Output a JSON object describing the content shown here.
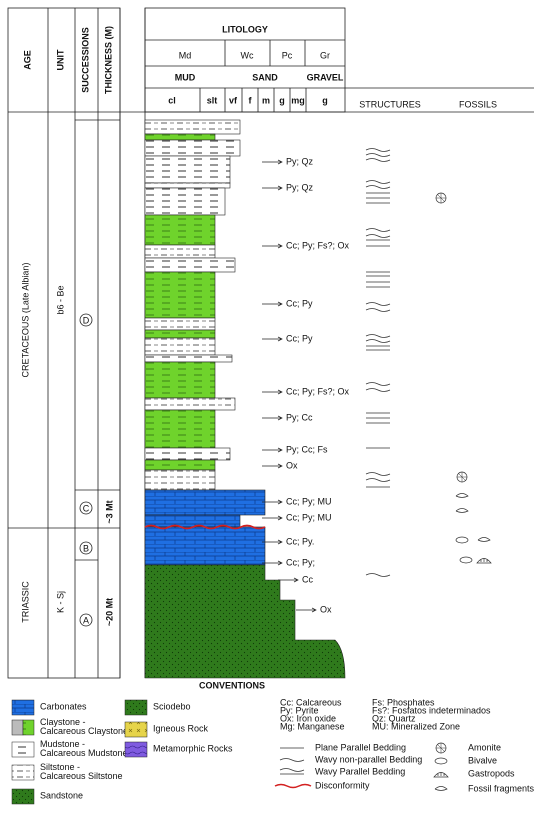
{
  "header": {
    "columns": [
      "AGE",
      "UNIT",
      "SUCCESSIONS",
      "THICKNESS (M)"
    ],
    "title": "LITOLOGY",
    "textures": [
      "Md",
      "Wc",
      "Pc",
      "Gr"
    ],
    "grain_groups": [
      "MUD",
      "SAND",
      "GRAVEL"
    ],
    "grain_sizes": [
      "cl",
      "slt",
      "vf",
      "f",
      "m",
      "g",
      "mg",
      "g"
    ],
    "structures": "STRUCTURES",
    "fossils": "FOSSILS"
  },
  "ages": [
    "CRETACEOUS (Late Albian)",
    "TRIASSIC"
  ],
  "units": [
    "b6 - Be",
    "K - Sj"
  ],
  "successions": [
    "D",
    "C",
    "B",
    "A"
  ],
  "thickness": [
    "~3 Mt",
    "~20 Mt"
  ],
  "annotations": [
    "Py; Qz",
    "Py; Qz",
    "Cc; Py; Fs?; Ox",
    "Cc; Py",
    "Cc; Py",
    "Cc; Py; Fs?; Ox",
    "Py; Cc",
    "Py; Cc; Fs",
    "Ox",
    "Cc; Py; MU",
    "Cc; Py; MU",
    "Cc; Py.",
    "Cc; Py;",
    "Cc",
    "Ox"
  ],
  "conventions": {
    "title": "CONVENTIONS",
    "lithology": [
      "Carbonates",
      "Claystone - Calcareous Claystone",
      "Mudstone - Calcareous Mudstone",
      "Siltstone - Calcareous Siltstone",
      "Sandstone",
      "Sciodebo",
      "Igneous Rock",
      "Metamorphic Rocks"
    ],
    "abbreviations": [
      "Cc: Calcareous",
      "Py: Pyrite",
      "Ox: Iron oxide",
      "Mg: Manganese",
      "Fs: Phosphates",
      "Fs?: Fosfatos indeterminados",
      "Qz: Quartz",
      "MU: Mineralized Zone"
    ],
    "structures": [
      "Plane Parallel Bedding",
      "Wavy non-parallel Bedding",
      "Wavy Parallel Bedding",
      "Disconformity"
    ],
    "fossils": [
      "Amonite",
      "Bivalve",
      "Gastropods",
      "Fossil fragments"
    ]
  }
}
